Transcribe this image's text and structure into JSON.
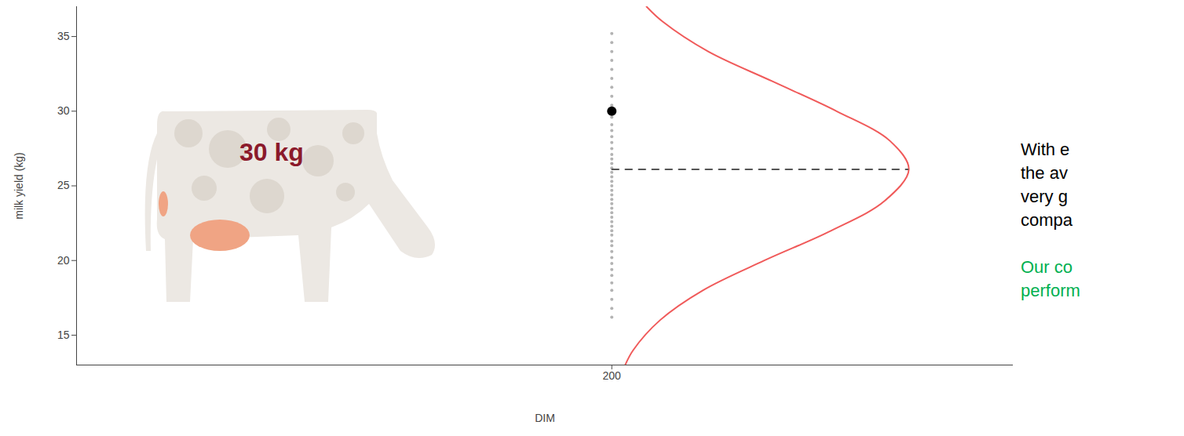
{
  "chart_data": {
    "type": "scatter",
    "x_label": "DIM",
    "y_label": "milk yield (kg)",
    "xlim": [
      0,
      350
    ],
    "xticks": [
      200
    ],
    "ylim": [
      13,
      37
    ],
    "yticks": [
      15,
      20,
      25,
      30,
      35
    ],
    "points": {
      "x": 200,
      "color": "#b3b3b3",
      "values": [
        16.2,
        16.8,
        17.4,
        18.0,
        18.5,
        19.0,
        19.4,
        19.8,
        20.2,
        20.6,
        21.0,
        21.3,
        21.7,
        22.0,
        22.3,
        22.6,
        22.9,
        23.2,
        23.5,
        23.8,
        24.1,
        24.4,
        24.7,
        25.0,
        25.3,
        25.6,
        25.9,
        26.2,
        26.5,
        26.8,
        27.1,
        27.5,
        27.9,
        28.3,
        28.7,
        29.1,
        29.6,
        30.4,
        31.0,
        31.6,
        32.2,
        32.8,
        33.4,
        34.0,
        34.6,
        35.2
      ]
    },
    "highlight": {
      "x": 200,
      "y": 30,
      "color": "#000000"
    },
    "curve": {
      "type": "line",
      "color": "#f05a5a",
      "x": [
        205,
        208,
        218,
        234,
        257,
        282,
        302,
        311,
        304,
        284,
        260,
        236,
        219,
        213
      ],
      "y": [
        13,
        14,
        16,
        18,
        20,
        22,
        24,
        26.1,
        28,
        30,
        32,
        34,
        36,
        37
      ]
    },
    "mean_line": {
      "x": [
        200,
        311
      ],
      "y": 26.1,
      "color": "#555555",
      "line_style": "dashed"
    },
    "annotations": [
      {
        "text": "30 kg",
        "color": "#8b1a2b"
      }
    ],
    "side_text": [
      {
        "text": "With e",
        "color": "#000000"
      },
      {
        "text": "the av",
        "color": "#000000"
      },
      {
        "text": "very g",
        "color": "#000000"
      },
      {
        "text": "compa",
        "color": "#000000"
      },
      {
        "text": "",
        "color": "#000000"
      },
      {
        "text": "Our co",
        "color": "#00b050"
      },
      {
        "text": "perform",
        "color": "#00b050"
      }
    ]
  }
}
